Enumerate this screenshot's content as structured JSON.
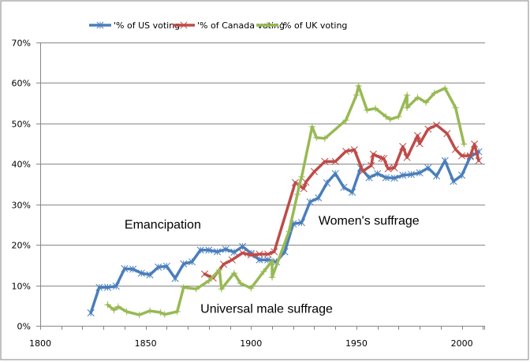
{
  "chart_data": {
    "type": "line",
    "title": "",
    "xlabel": "",
    "ylabel": "",
    "xlim": [
      1800,
      2011
    ],
    "ylim": [
      0,
      70
    ],
    "x_ticks": [
      1800,
      1850,
      1900,
      1950,
      2000
    ],
    "x_tick_labels": [
      "1800",
      "1850",
      "1900",
      "1950",
      "2000"
    ],
    "y_ticks": [
      0,
      10,
      20,
      30,
      40,
      50,
      60,
      70
    ],
    "y_tick_labels": [
      "0%",
      "10%",
      "20%",
      "30%",
      "40%",
      "50%",
      "60%",
      "70%"
    ],
    "grid": "horizontal",
    "legend_position": "top",
    "series": [
      {
        "name": "'% of US voting",
        "color": "#4a7ebb",
        "marker": "asterisk",
        "x": [
          1824,
          1828,
          1832,
          1836,
          1840,
          1844,
          1848,
          1852,
          1856,
          1860,
          1864,
          1868,
          1872,
          1876,
          1880,
          1884,
          1888,
          1892,
          1896,
          1900,
          1904,
          1908,
          1912,
          1916,
          1920,
          1924,
          1928,
          1932,
          1936,
          1940,
          1944,
          1948,
          1952,
          1956,
          1960,
          1964,
          1968,
          1972,
          1976,
          1980,
          1984,
          1988,
          1992,
          1996,
          2000,
          2004,
          2008
        ],
        "values": [
          3.2,
          9.5,
          9.5,
          9.8,
          14.1,
          14.0,
          13.0,
          12.6,
          14.5,
          14.7,
          11.7,
          15.3,
          15.8,
          18.7,
          18.7,
          18.3,
          18.9,
          18.2,
          19.6,
          17.9,
          16.3,
          16.3,
          15.8,
          18.3,
          25.2,
          25.5,
          30.6,
          31.6,
          35.3,
          37.6,
          34.2,
          33.0,
          39.0,
          36.6,
          37.6,
          36.6,
          36.5,
          37.2,
          37.4,
          37.8,
          39.0,
          37.0,
          40.8,
          35.7,
          37.2,
          41.8,
          43.0
        ]
      },
      {
        "name": "'% of Canada voting",
        "color": "#be4b48",
        "marker": "x",
        "x": [
          1878,
          1882,
          1887,
          1891,
          1896,
          1900,
          1904,
          1908,
          1911,
          1921,
          1925,
          1926,
          1930,
          1935,
          1940,
          1945,
          1949,
          1953,
          1957,
          1958,
          1962,
          1963,
          1965,
          1968,
          1972,
          1974,
          1979,
          1980,
          1984,
          1988,
          1993,
          1997,
          2000,
          2004,
          2006,
          2008
        ],
        "values": [
          12.8,
          11.8,
          15.2,
          16.3,
          18.0,
          17.5,
          17.7,
          17.7,
          18.3,
          35.4,
          33.9,
          35.5,
          38.1,
          40.6,
          40.6,
          43.1,
          43.5,
          38.2,
          39.6,
          42.4,
          41.4,
          41.3,
          38.8,
          39.0,
          44.3,
          41.6,
          47.0,
          45.0,
          48.6,
          49.6,
          47.5,
          43.6,
          42.0,
          42.0,
          44.9,
          40.8
        ]
      },
      {
        "name": "'% of UK voting",
        "color": "#98b954",
        "marker": "plus",
        "x": [
          1832,
          1835,
          1837,
          1841,
          1847,
          1852,
          1857,
          1859,
          1865,
          1868,
          1874,
          1880,
          1885,
          1886,
          1892,
          1895,
          1900,
          1906,
          1910,
          1910,
          1918,
          1922,
          1923,
          1924,
          1929,
          1931,
          1935,
          1945,
          1950,
          1951,
          1955,
          1959,
          1964,
          1966,
          1970,
          1974,
          1974,
          1979,
          1983,
          1987,
          1992,
          1997,
          2001
        ],
        "values": [
          5.2,
          3.9,
          4.7,
          3.5,
          2.7,
          3.7,
          3.3,
          2.8,
          3.5,
          9.5,
          9.1,
          11.1,
          13.8,
          9.1,
          13.0,
          10.5,
          9.3,
          13.4,
          16.0,
          12.0,
          23.3,
          32.5,
          35.0,
          36.8,
          49.2,
          46.5,
          46.3,
          50.8,
          57.0,
          59.3,
          53.3,
          53.7,
          51.7,
          51.0,
          51.7,
          57.0,
          53.9,
          56.4,
          55.2,
          57.5,
          58.7,
          53.9,
          44.9
        ]
      }
    ],
    "annotations": [
      {
        "text": "Emancipation",
        "x": 1840,
        "y": 24
      },
      {
        "text": "Women's suffrage",
        "x": 1932,
        "y": 25
      },
      {
        "text": "Universal male suffrage",
        "x": 1876,
        "y": 3.2
      }
    ]
  }
}
